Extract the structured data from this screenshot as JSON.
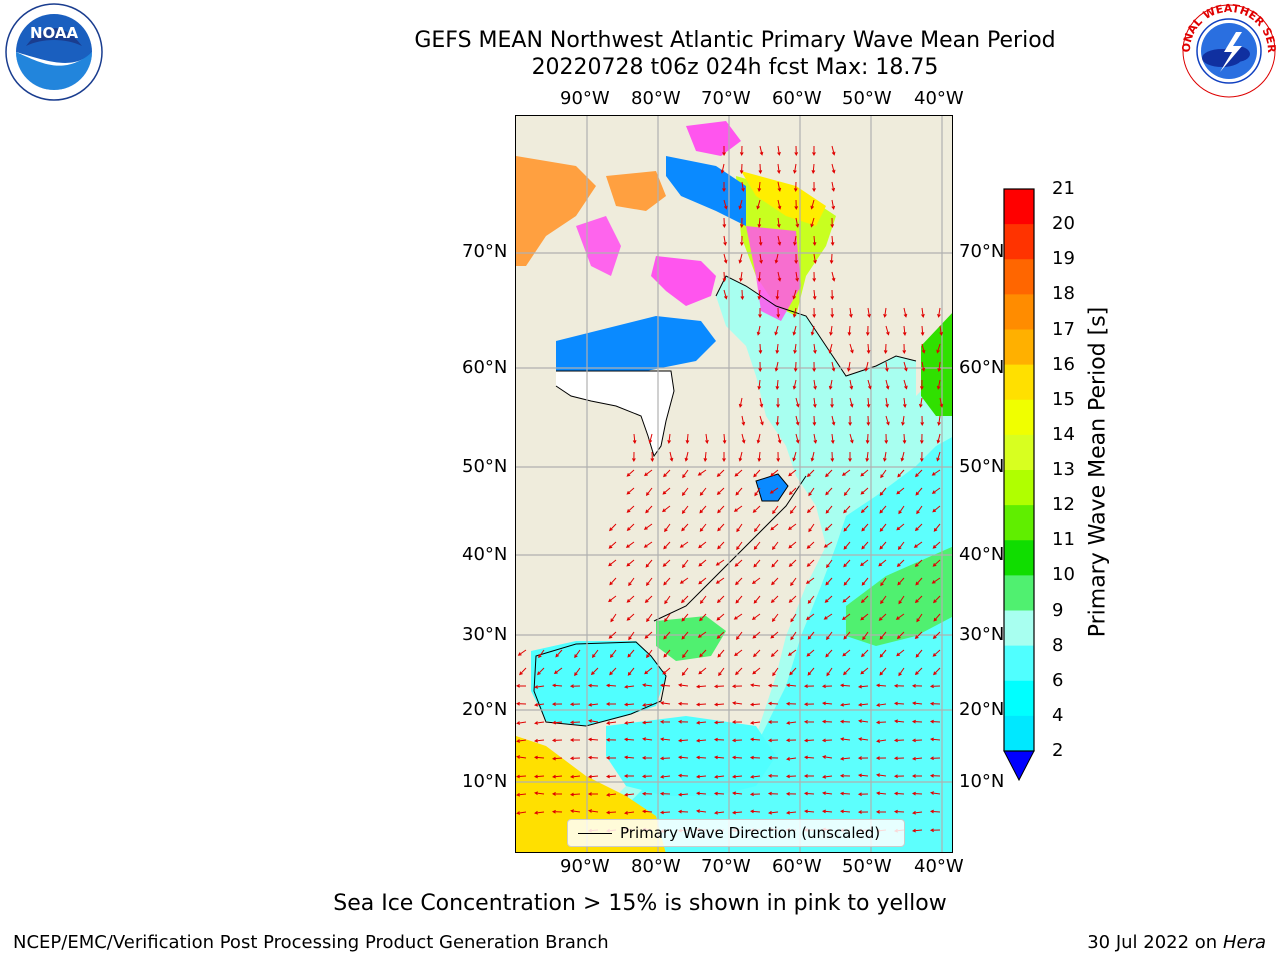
{
  "title": {
    "line1": "GEFS MEAN Northwest Atlantic Primary Wave Mean Period",
    "line2": "20220728 t06z 024h fcst   Max: 18.75"
  },
  "map": {
    "lon_labels": [
      "90°W",
      "80°W",
      "70°W",
      "60°W",
      "50°W",
      "40°W"
    ],
    "lat_labels": [
      "70°N",
      "60°N",
      "50°N",
      "40°N",
      "30°N",
      "20°N",
      "10°N"
    ],
    "legend": "Primary Wave Direction (unscaled)",
    "colors": {
      "land": "#efecdc",
      "grid": "#b0b0b0",
      "arrow": "#e00000",
      "ice_pink": "#ff55ee",
      "ice_orange": "#ffa040"
    }
  },
  "colorbar": {
    "label": "Primary Wave Mean Period [s]",
    "ticks": [
      "21",
      "20",
      "19",
      "18",
      "17",
      "16",
      "15",
      "14",
      "13",
      "12",
      "11",
      "10",
      "9",
      "8",
      "6",
      "4",
      "2"
    ],
    "colors": [
      "#ff0000",
      "#ff3300",
      "#ff6600",
      "#ff8c00",
      "#ffb000",
      "#ffe000",
      "#f0ff00",
      "#d8ff20",
      "#b0ff00",
      "#60ee00",
      "#10dd00",
      "#50f070",
      "#a8fff0",
      "#50ffff",
      "#00ffff",
      "#00e8ff",
      "#0080ff"
    ],
    "extend_color": "#0000ff"
  },
  "caption": "Sea Ice Concentration > 15% is shown in pink to yellow",
  "footer": {
    "credit": "NCEP/EMC/Verification Post Processing Product Generation Branch",
    "date": "30 Jul 2022 on ",
    "host": "Hera"
  },
  "logos": {
    "noaa": "NOAA",
    "nws_text": "NATIONAL WEATHER SERVICE"
  }
}
